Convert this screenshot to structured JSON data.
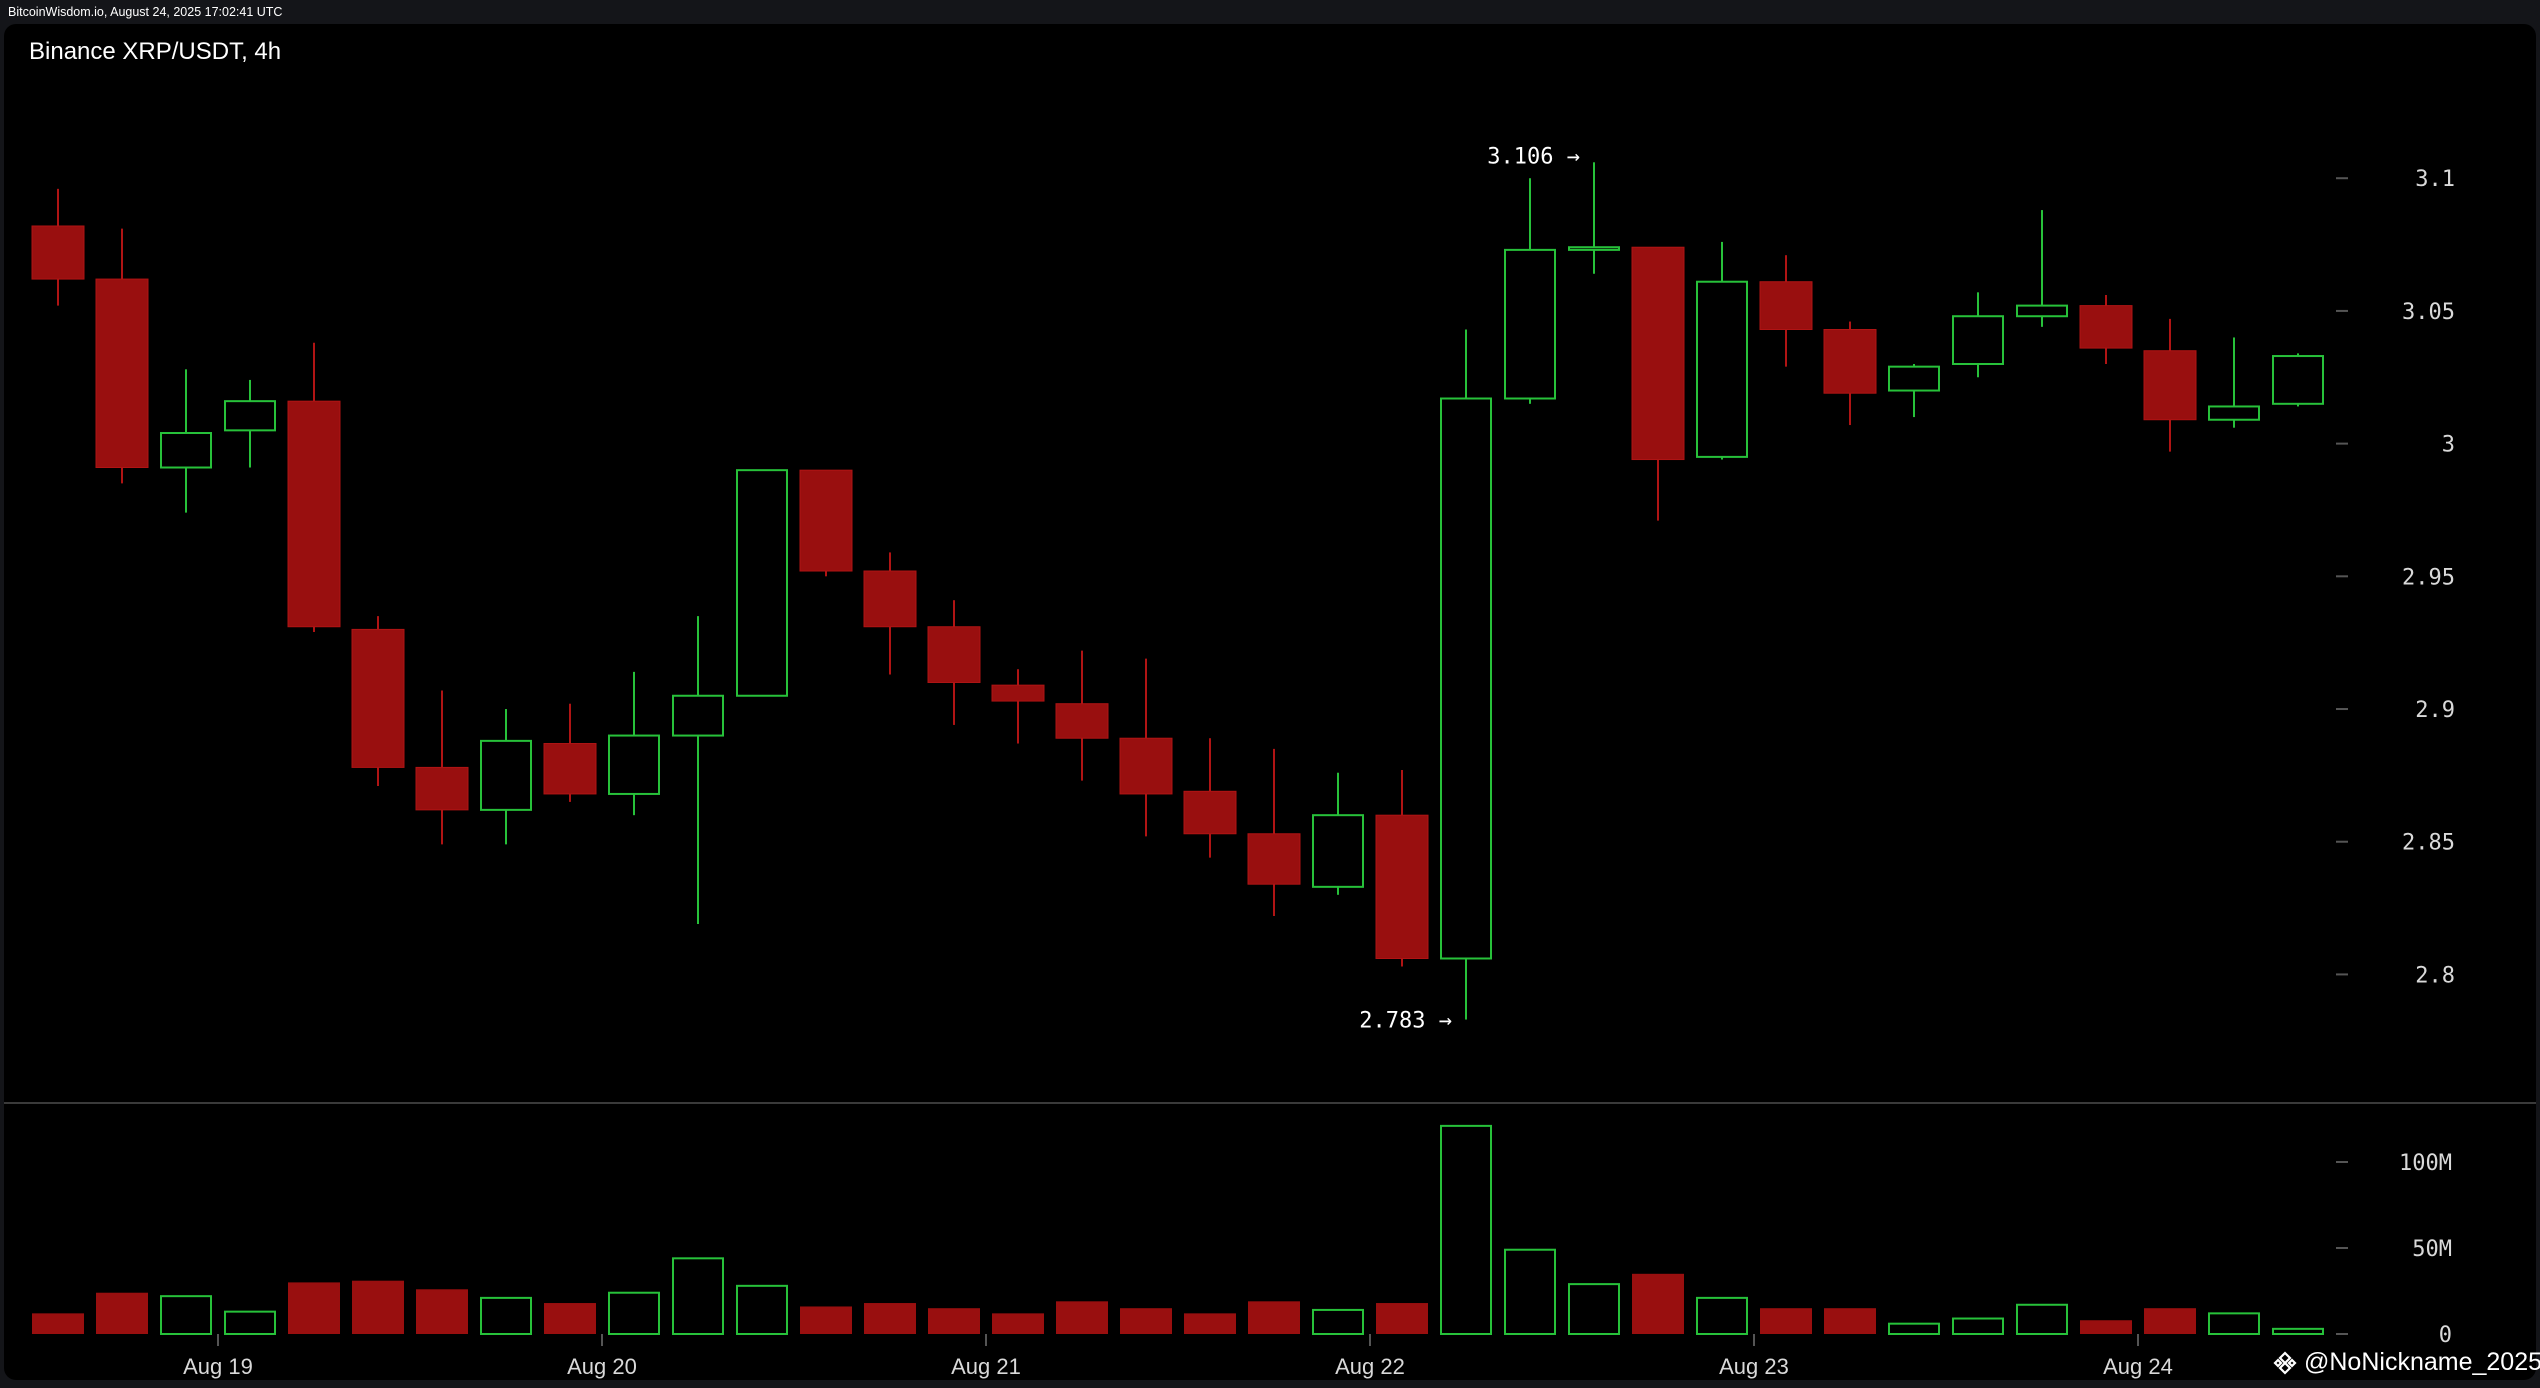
{
  "header": {
    "source": "BitcoinWisdom.io, August 24, 2025 17:02:41 UTC"
  },
  "watermark": "@NoNickname_2025",
  "colors": {
    "up": "#27c13a",
    "down": "#990f0f",
    "background": "#000000",
    "axis_text": "#d9d9d9"
  },
  "chart_data": {
    "type": "candlestick",
    "title": "Binance XRP/USDT, 4h",
    "price_axis": {
      "ticks": [
        2.8,
        2.85,
        2.9,
        2.95,
        3,
        3.05,
        3.1
      ],
      "tick_labels": [
        "2.8",
        "2.85",
        "2.9",
        "2.95",
        "3",
        "3.05",
        "3.1"
      ],
      "range": [
        2.75,
        3.14
      ]
    },
    "volume_axis": {
      "ticks": [
        0,
        50,
        100
      ],
      "tick_labels": [
        "0",
        "50M",
        "100M"
      ],
      "unit": "M"
    },
    "date_labels": [
      {
        "label": "Aug 19",
        "index": 2.5
      },
      {
        "label": "Aug 20",
        "index": 8.5
      },
      {
        "label": "Aug 21",
        "index": 14.5
      },
      {
        "label": "Aug 22",
        "index": 20.5
      },
      {
        "label": "Aug 23",
        "index": 26.5
      },
      {
        "label": "Aug 24",
        "index": 32.5
      }
    ],
    "annotations": [
      {
        "label": "3.106 →",
        "value": 3.106,
        "index": 24
      },
      {
        "label": "2.783 →",
        "value": 2.783,
        "index": 22
      }
    ],
    "candles": [
      {
        "o": 3.082,
        "h": 3.096,
        "l": 3.052,
        "c": 3.062,
        "v": 12
      },
      {
        "o": 3.062,
        "h": 3.081,
        "l": 2.985,
        "c": 2.991,
        "v": 24
      },
      {
        "o": 2.991,
        "h": 3.028,
        "l": 2.974,
        "c": 3.004,
        "v": 22
      },
      {
        "o": 3.005,
        "h": 3.024,
        "l": 2.991,
        "c": 3.016,
        "v": 13
      },
      {
        "o": 3.016,
        "h": 3.038,
        "l": 2.929,
        "c": 2.931,
        "v": 30
      },
      {
        "o": 2.93,
        "h": 2.935,
        "l": 2.871,
        "c": 2.878,
        "v": 31
      },
      {
        "o": 2.878,
        "h": 2.907,
        "l": 2.849,
        "c": 2.862,
        "v": 26
      },
      {
        "o": 2.862,
        "h": 2.9,
        "l": 2.849,
        "c": 2.888,
        "v": 21
      },
      {
        "o": 2.887,
        "h": 2.902,
        "l": 2.865,
        "c": 2.868,
        "v": 18
      },
      {
        "o": 2.868,
        "h": 2.914,
        "l": 2.86,
        "c": 2.89,
        "v": 24
      },
      {
        "o": 2.89,
        "h": 2.935,
        "l": 2.819,
        "c": 2.905,
        "v": 44
      },
      {
        "o": 2.905,
        "h": 2.99,
        "l": 2.905,
        "c": 2.99,
        "v": 28
      },
      {
        "o": 2.99,
        "h": 2.99,
        "l": 2.95,
        "c": 2.952,
        "v": 16
      },
      {
        "o": 2.952,
        "h": 2.959,
        "l": 2.913,
        "c": 2.931,
        "v": 18
      },
      {
        "o": 2.931,
        "h": 2.941,
        "l": 2.894,
        "c": 2.91,
        "v": 15
      },
      {
        "o": 2.909,
        "h": 2.915,
        "l": 2.887,
        "c": 2.903,
        "v": 12
      },
      {
        "o": 2.902,
        "h": 2.922,
        "l": 2.873,
        "c": 2.889,
        "v": 19
      },
      {
        "o": 2.889,
        "h": 2.919,
        "l": 2.852,
        "c": 2.868,
        "v": 15
      },
      {
        "o": 2.869,
        "h": 2.889,
        "l": 2.844,
        "c": 2.853,
        "v": 12
      },
      {
        "o": 2.853,
        "h": 2.885,
        "l": 2.822,
        "c": 2.834,
        "v": 19
      },
      {
        "o": 2.833,
        "h": 2.876,
        "l": 2.83,
        "c": 2.86,
        "v": 14
      },
      {
        "o": 2.86,
        "h": 2.877,
        "l": 2.803,
        "c": 2.806,
        "v": 18
      },
      {
        "o": 2.806,
        "h": 3.043,
        "l": 2.783,
        "c": 3.017,
        "v": 121
      },
      {
        "o": 3.017,
        "h": 3.1,
        "l": 3.015,
        "c": 3.073,
        "v": 49
      },
      {
        "o": 3.073,
        "h": 3.106,
        "l": 3.064,
        "c": 3.074,
        "v": 29
      },
      {
        "o": 3.074,
        "h": 3.074,
        "l": 2.971,
        "c": 2.994,
        "v": 35
      },
      {
        "o": 2.995,
        "h": 3.076,
        "l": 2.994,
        "c": 3.061,
        "v": 21
      },
      {
        "o": 3.061,
        "h": 3.071,
        "l": 3.029,
        "c": 3.043,
        "v": 15
      },
      {
        "o": 3.043,
        "h": 3.046,
        "l": 3.007,
        "c": 3.019,
        "v": 15
      },
      {
        "o": 3.02,
        "h": 3.03,
        "l": 3.01,
        "c": 3.029,
        "v": 6
      },
      {
        "o": 3.03,
        "h": 3.057,
        "l": 3.025,
        "c": 3.048,
        "v": 9
      },
      {
        "o": 3.048,
        "h": 3.088,
        "l": 3.044,
        "c": 3.052,
        "v": 17
      },
      {
        "o": 3.052,
        "h": 3.056,
        "l": 3.03,
        "c": 3.036,
        "v": 8
      },
      {
        "o": 3.035,
        "h": 3.047,
        "l": 2.997,
        "c": 3.009,
        "v": 15
      },
      {
        "o": 3.009,
        "h": 3.04,
        "l": 3.006,
        "c": 3.014,
        "v": 12
      },
      {
        "o": 3.015,
        "h": 3.034,
        "l": 3.014,
        "c": 3.033,
        "v": 3
      }
    ]
  }
}
